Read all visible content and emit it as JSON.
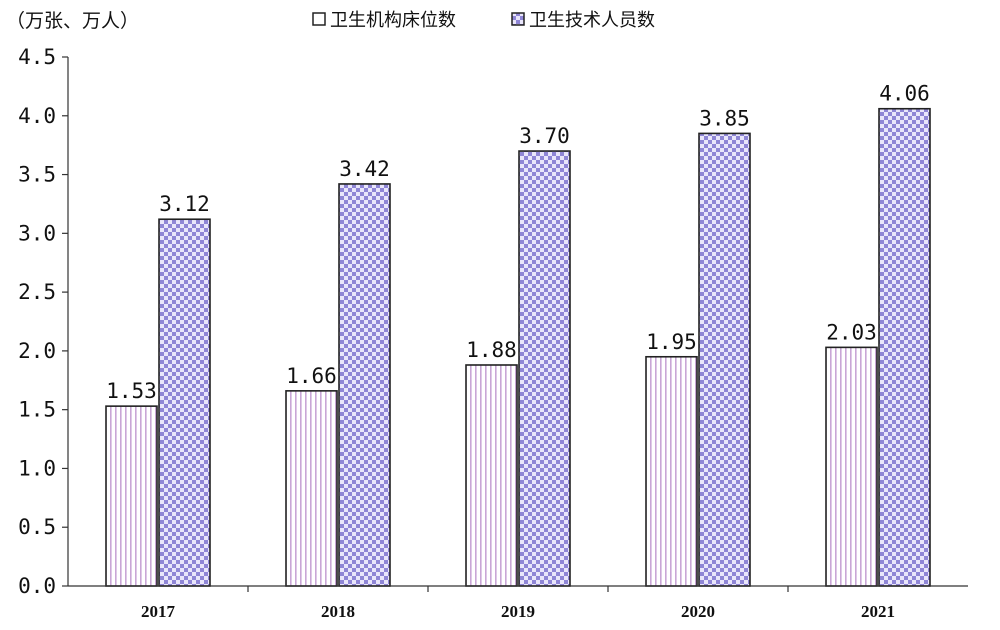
{
  "chart_data": {
    "type": "bar",
    "unit_label": "（万张、万人）",
    "categories": [
      "2017",
      "2018",
      "2019",
      "2020",
      "2021"
    ],
    "series": [
      {
        "name": "卫生机构床位数",
        "values": [
          1.53,
          1.66,
          1.88,
          1.95,
          2.03
        ],
        "value_labels": [
          "1.53",
          "1.66",
          "1.88",
          "1.95",
          "2.03"
        ],
        "pattern": "vertical-stripes",
        "color": "#c9a6d6"
      },
      {
        "name": "卫生技术人员数",
        "values": [
          3.12,
          3.42,
          3.7,
          3.85,
          4.06
        ],
        "value_labels": [
          "3.12",
          "3.42",
          "3.70",
          "3.85",
          "4.06"
        ],
        "pattern": "checker",
        "color": "#8f86d6"
      }
    ],
    "ylim": [
      0,
      4.5
    ],
    "yticks": [
      "0.0",
      "0.5",
      "1.0",
      "1.5",
      "2.0",
      "2.5",
      "3.0",
      "3.5",
      "4.0",
      "4.5"
    ],
    "grid": false,
    "legend_position": "top"
  }
}
